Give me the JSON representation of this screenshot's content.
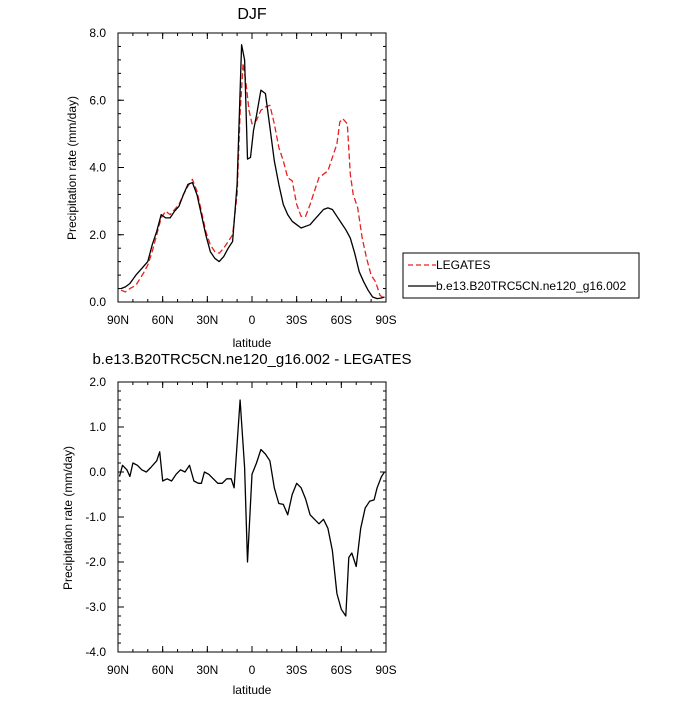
{
  "chart_data": [
    {
      "type": "line",
      "title": "DJF",
      "xlabel": "latitude",
      "ylabel": "Precipitation rate (mm/day)",
      "xlim": [
        90,
        -90
      ],
      "ylim": [
        0,
        8
      ],
      "x_ticks": [
        {
          "value": 90,
          "label": "90N"
        },
        {
          "value": 60,
          "label": "60N"
        },
        {
          "value": 30,
          "label": "30N"
        },
        {
          "value": 0,
          "label": "0"
        },
        {
          "value": -30,
          "label": "30S"
        },
        {
          "value": -60,
          "label": "60S"
        },
        {
          "value": -90,
          "label": "90S"
        }
      ],
      "y_ticks": [
        {
          "value": 0,
          "label": "0.0"
        },
        {
          "value": 2,
          "label": "2.0"
        },
        {
          "value": 4,
          "label": "4.0"
        },
        {
          "value": 6,
          "label": "6.0"
        },
        {
          "value": 8,
          "label": "8.0"
        }
      ],
      "legend": "outside-right",
      "series": [
        {
          "name": "LEGATES",
          "color": "#e8211e",
          "dash": "dashed",
          "points": [
            [
              88,
              0.35
            ],
            [
              85,
              0.3
            ],
            [
              82,
              0.4
            ],
            [
              78,
              0.5
            ],
            [
              73,
              0.85
            ],
            [
              70,
              1.1
            ],
            [
              67,
              1.5
            ],
            [
              64,
              2.0
            ],
            [
              61,
              2.5
            ],
            [
              58,
              2.7
            ],
            [
              55,
              2.6
            ],
            [
              52,
              2.75
            ],
            [
              49,
              2.9
            ],
            [
              46,
              3.2
            ],
            [
              43,
              3.45
            ],
            [
              40,
              3.65
            ],
            [
              37,
              3.3
            ],
            [
              34,
              2.7
            ],
            [
              31,
              2.1
            ],
            [
              28,
              1.7
            ],
            [
              25,
              1.5
            ],
            [
              22,
              1.45
            ],
            [
              19,
              1.6
            ],
            [
              16,
              1.8
            ],
            [
              13,
              2.0
            ],
            [
              10,
              3.2
            ],
            [
              8,
              5.6
            ],
            [
              6,
              7.1
            ],
            [
              4,
              6.5
            ],
            [
              2,
              5.7
            ],
            [
              0,
              5.3
            ],
            [
              -3,
              5.4
            ],
            [
              -6,
              5.7
            ],
            [
              -9,
              5.8
            ],
            [
              -12,
              5.85
            ],
            [
              -15,
              5.3
            ],
            [
              -18,
              4.6
            ],
            [
              -21,
              4.2
            ],
            [
              -24,
              3.7
            ],
            [
              -27,
              3.6
            ],
            [
              -30,
              2.9
            ],
            [
              -33,
              2.55
            ],
            [
              -36,
              2.55
            ],
            [
              -39,
              2.9
            ],
            [
              -42,
              3.3
            ],
            [
              -45,
              3.7
            ],
            [
              -48,
              3.8
            ],
            [
              -51,
              3.9
            ],
            [
              -54,
              4.3
            ],
            [
              -57,
              4.7
            ],
            [
              -59,
              5.35
            ],
            [
              -61,
              5.45
            ],
            [
              -64,
              5.3
            ],
            [
              -66,
              3.8
            ],
            [
              -68,
              3.2
            ],
            [
              -71,
              2.8
            ],
            [
              -74,
              1.9
            ],
            [
              -77,
              1.3
            ],
            [
              -80,
              0.8
            ],
            [
              -83,
              0.6
            ],
            [
              -86,
              0.2
            ],
            [
              -89,
              0.1
            ]
          ]
        },
        {
          "name": "b.e13.B20TRC5CN.ne120_g16.002",
          "color": "#000000",
          "dash": "solid",
          "points": [
            [
              88,
              0.4
            ],
            [
              85,
              0.45
            ],
            [
              82,
              0.55
            ],
            [
              78,
              0.8
            ],
            [
              74,
              1.0
            ],
            [
              70,
              1.2
            ],
            [
              67,
              1.7
            ],
            [
              64,
              2.1
            ],
            [
              61,
              2.6
            ],
            [
              58,
              2.5
            ],
            [
              55,
              2.5
            ],
            [
              52,
              2.7
            ],
            [
              49,
              2.85
            ],
            [
              46,
              3.2
            ],
            [
              43,
              3.5
            ],
            [
              40,
              3.55
            ],
            [
              37,
              3.2
            ],
            [
              34,
              2.6
            ],
            [
              31,
              2.0
            ],
            [
              28,
              1.5
            ],
            [
              25,
              1.3
            ],
            [
              22,
              1.2
            ],
            [
              19,
              1.35
            ],
            [
              16,
              1.6
            ],
            [
              13,
              1.8
            ],
            [
              10,
              3.5
            ],
            [
              7,
              7.65
            ],
            [
              5,
              7.2
            ],
            [
              3,
              4.25
            ],
            [
              1,
              4.3
            ],
            [
              -1,
              5.1
            ],
            [
              -3,
              5.55
            ],
            [
              -6,
              6.3
            ],
            [
              -9,
              6.2
            ],
            [
              -12,
              5.2
            ],
            [
              -15,
              4.2
            ],
            [
              -18,
              3.5
            ],
            [
              -21,
              2.9
            ],
            [
              -24,
              2.6
            ],
            [
              -27,
              2.4
            ],
            [
              -30,
              2.3
            ],
            [
              -33,
              2.2
            ],
            [
              -36,
              2.25
            ],
            [
              -39,
              2.3
            ],
            [
              -42,
              2.45
            ],
            [
              -45,
              2.6
            ],
            [
              -48,
              2.75
            ],
            [
              -51,
              2.8
            ],
            [
              -54,
              2.75
            ],
            [
              -57,
              2.55
            ],
            [
              -60,
              2.35
            ],
            [
              -63,
              2.15
            ],
            [
              -66,
              1.9
            ],
            [
              -69,
              1.45
            ],
            [
              -72,
              0.9
            ],
            [
              -75,
              0.6
            ],
            [
              -78,
              0.35
            ],
            [
              -81,
              0.15
            ],
            [
              -84,
              0.1
            ],
            [
              -87,
              0.12
            ],
            [
              -89,
              0.15
            ]
          ]
        }
      ]
    },
    {
      "type": "line",
      "title": "b.e13.B20TRC5CN.ne120_g16.002 - LEGATES",
      "xlabel": "latitude",
      "ylabel": "Precipitation rate (mm/day)",
      "xlim": [
        90,
        -90
      ],
      "ylim": [
        -4,
        2
      ],
      "x_ticks": [
        {
          "value": 90,
          "label": "90N"
        },
        {
          "value": 60,
          "label": "60N"
        },
        {
          "value": 30,
          "label": "30N"
        },
        {
          "value": 0,
          "label": "0"
        },
        {
          "value": -30,
          "label": "30S"
        },
        {
          "value": -60,
          "label": "60S"
        },
        {
          "value": -90,
          "label": "90S"
        }
      ],
      "y_ticks": [
        {
          "value": -4,
          "label": "-4.0"
        },
        {
          "value": -3,
          "label": "-3.0"
        },
        {
          "value": -2,
          "label": "-2.0"
        },
        {
          "value": -1,
          "label": "-1.0"
        },
        {
          "value": 0,
          "label": "0.0"
        },
        {
          "value": 1,
          "label": "1.0"
        },
        {
          "value": 2,
          "label": "2.0"
        }
      ],
      "series": [
        {
          "color": "#000000",
          "dash": "solid",
          "points": [
            [
              89,
              -0.1
            ],
            [
              87,
              0.15
            ],
            [
              84,
              0.05
            ],
            [
              82,
              -0.1
            ],
            [
              80,
              0.2
            ],
            [
              77,
              0.15
            ],
            [
              74,
              0.05
            ],
            [
              71,
              0.0
            ],
            [
              68,
              0.1
            ],
            [
              64,
              0.25
            ],
            [
              62,
              0.45
            ],
            [
              60,
              -0.2
            ],
            [
              57,
              -0.15
            ],
            [
              54,
              -0.2
            ],
            [
              51,
              -0.05
            ],
            [
              48,
              0.05
            ],
            [
              45,
              0.0
            ],
            [
              42,
              0.15
            ],
            [
              39,
              -0.2
            ],
            [
              36,
              -0.25
            ],
            [
              34,
              -0.25
            ],
            [
              32,
              0.0
            ],
            [
              29,
              -0.05
            ],
            [
              26,
              -0.15
            ],
            [
              23,
              -0.25
            ],
            [
              20,
              -0.25
            ],
            [
              17,
              -0.15
            ],
            [
              14,
              -0.15
            ],
            [
              12,
              -0.35
            ],
            [
              8,
              1.6
            ],
            [
              5,
              0.1
            ],
            [
              3,
              -2.0
            ],
            [
              0,
              -0.05
            ],
            [
              -3,
              0.2
            ],
            [
              -6,
              0.5
            ],
            [
              -9,
              0.4
            ],
            [
              -12,
              0.25
            ],
            [
              -15,
              -0.35
            ],
            [
              -18,
              -0.7
            ],
            [
              -21,
              -0.72
            ],
            [
              -24,
              -0.95
            ],
            [
              -27,
              -0.5
            ],
            [
              -30,
              -0.25
            ],
            [
              -33,
              -0.35
            ],
            [
              -36,
              -0.6
            ],
            [
              -39,
              -0.95
            ],
            [
              -42,
              -1.05
            ],
            [
              -45,
              -1.15
            ],
            [
              -48,
              -1.05
            ],
            [
              -51,
              -1.25
            ],
            [
              -54,
              -1.75
            ],
            [
              -57,
              -2.7
            ],
            [
              -60,
              -3.05
            ],
            [
              -63,
              -3.2
            ],
            [
              -65,
              -1.9
            ],
            [
              -67,
              -1.8
            ],
            [
              -70,
              -2.1
            ],
            [
              -73,
              -1.25
            ],
            [
              -76,
              -0.8
            ],
            [
              -79,
              -0.65
            ],
            [
              -82,
              -0.62
            ],
            [
              -84,
              -0.35
            ],
            [
              -87,
              -0.1
            ],
            [
              -89,
              0.0
            ]
          ]
        }
      ]
    }
  ]
}
